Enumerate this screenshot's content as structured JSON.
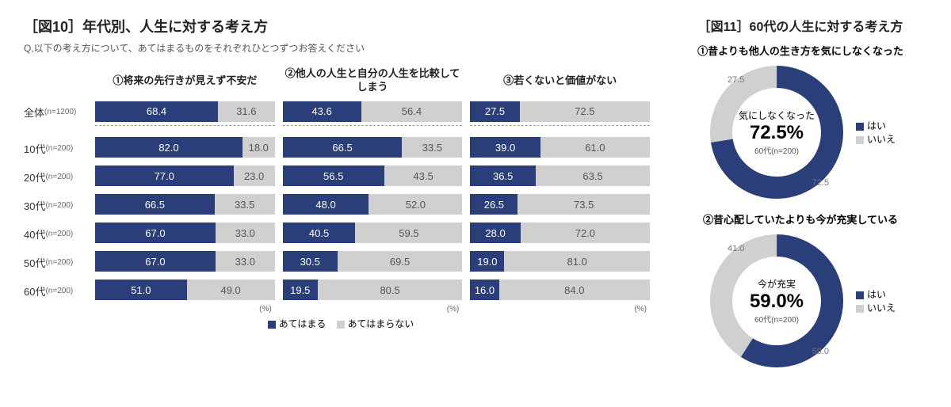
{
  "colors": {
    "yes": "#2a3e7a",
    "no": "#d0d0d0",
    "noText": "#777777"
  },
  "fig10": {
    "title": "［図10］年代別、人生に対する考え方",
    "subtitle": "Q,以下の考え方について、あてはまるものをそれぞれひとつずつお答えください",
    "rowLabels": [
      {
        "label": "全体",
        "n": "(n=1200)"
      },
      {
        "label": "10代",
        "n": "(n=200)"
      },
      {
        "label": "20代",
        "n": "(n=200)"
      },
      {
        "label": "30代",
        "n": "(n=200)"
      },
      {
        "label": "40代",
        "n": "(n=200)"
      },
      {
        "label": "50代",
        "n": "(n=200)"
      },
      {
        "label": "60代",
        "n": "(n=200)"
      }
    ],
    "columns": [
      {
        "header": "①将来の先行きが見えず不安だ",
        "data": [
          [
            68.4,
            31.6
          ],
          [
            82.0,
            18.0
          ],
          [
            77.0,
            23.0
          ],
          [
            66.5,
            33.5
          ],
          [
            67.0,
            33.0
          ],
          [
            67.0,
            33.0
          ],
          [
            51.0,
            49.0
          ]
        ]
      },
      {
        "header": "②他人の人生と自分の人生を比較してしまう",
        "data": [
          [
            43.6,
            56.4
          ],
          [
            66.5,
            33.5
          ],
          [
            56.5,
            43.5
          ],
          [
            48.0,
            52.0
          ],
          [
            40.5,
            59.5
          ],
          [
            30.5,
            69.5
          ],
          [
            19.5,
            80.5
          ]
        ]
      },
      {
        "header": "③若くないと価値がない",
        "data": [
          [
            27.5,
            72.5
          ],
          [
            39.0,
            61.0
          ],
          [
            36.5,
            63.5
          ],
          [
            26.5,
            73.5
          ],
          [
            28.0,
            72.0
          ],
          [
            19.0,
            81.0
          ],
          [
            16.0,
            84.0
          ]
        ]
      }
    ],
    "pctUnit": "(%)",
    "legend": {
      "yes": "あてはまる",
      "no": "あてはまらない"
    }
  },
  "fig11": {
    "title": "［図11］60代の人生に対する考え方",
    "donuts": [
      {
        "title": "①昔よりも他人の生き方を気にしなくなった",
        "yes": 72.5,
        "no": 27.5,
        "centerLabel": "気にしなくなった",
        "centerPct": "72.5%",
        "n": "60代(n=200)"
      },
      {
        "title": "②昔心配していたよりも今が充実している",
        "yes": 59.0,
        "no": 41.0,
        "centerLabel": "今が充実",
        "centerPct": "59.0%",
        "n": "60代(n=200)"
      }
    ],
    "legend": {
      "yes": "はい",
      "no": "いいえ"
    }
  }
}
